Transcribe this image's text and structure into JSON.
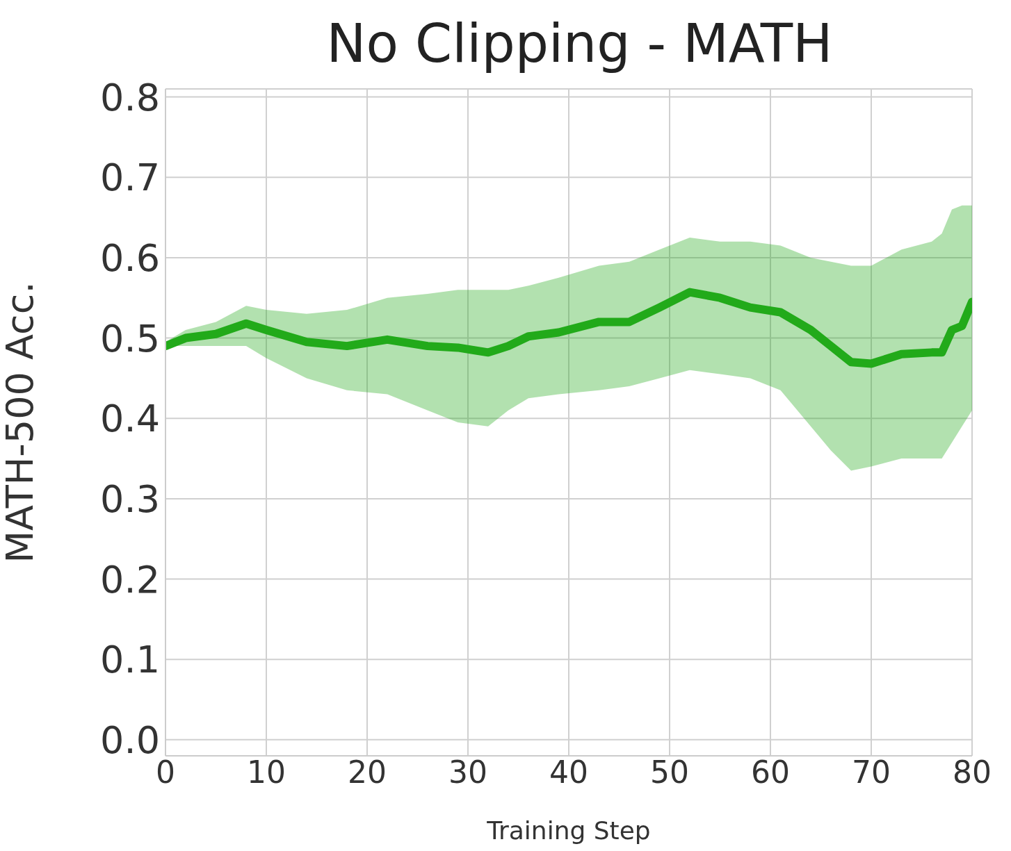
{
  "chart_data": {
    "type": "line",
    "title": "No Clipping - MATH",
    "xlabel": "Training Step",
    "ylabel": "MATH-500 Acc.",
    "x": [
      0,
      2,
      5,
      8,
      10,
      14,
      18,
      22,
      26,
      29,
      32,
      34,
      36,
      39,
      43,
      46,
      49,
      52,
      55,
      58,
      61,
      64,
      66,
      68,
      70,
      73,
      76,
      77,
      78,
      79,
      80
    ],
    "series": [
      {
        "color": "#22aa1a",
        "values": [
          0.49,
          0.5,
          0.505,
          0.518,
          0.51,
          0.495,
          0.49,
          0.498,
          0.49,
          0.488,
          0.482,
          0.49,
          0.502,
          0.507,
          0.52,
          0.52,
          0.538,
          0.557,
          0.55,
          0.538,
          0.532,
          0.51,
          0.49,
          0.47,
          0.468,
          0.48,
          0.482,
          0.482,
          0.51,
          0.515,
          0.545
        ],
        "lower": [
          0.49,
          0.49,
          0.49,
          0.49,
          0.475,
          0.45,
          0.435,
          0.43,
          0.41,
          0.395,
          0.39,
          0.41,
          0.425,
          0.43,
          0.435,
          0.44,
          0.45,
          0.46,
          0.455,
          0.45,
          0.435,
          0.39,
          0.36,
          0.335,
          0.34,
          0.35,
          0.35,
          0.35,
          0.37,
          0.39,
          0.41
        ],
        "upper": [
          0.495,
          0.51,
          0.52,
          0.54,
          0.535,
          0.53,
          0.535,
          0.55,
          0.555,
          0.56,
          0.56,
          0.56,
          0.565,
          0.575,
          0.59,
          0.595,
          0.61,
          0.625,
          0.62,
          0.62,
          0.615,
          0.6,
          0.595,
          0.59,
          0.59,
          0.61,
          0.62,
          0.63,
          0.66,
          0.665,
          0.665
        ]
      }
    ],
    "xlim": [
      0,
      80
    ],
    "xticks": [
      0,
      10,
      20,
      30,
      40,
      50,
      60,
      70,
      80
    ],
    "ylim": [
      -0.02,
      0.81
    ],
    "yticks": [
      {
        "value": 0,
        "label": "0.0"
      },
      0.1,
      0.2,
      0.3,
      0.4,
      0.5,
      0.6,
      0.7,
      0.8
    ],
    "grid": true,
    "legend": false,
    "marker": "none",
    "line_style": "solid"
  }
}
